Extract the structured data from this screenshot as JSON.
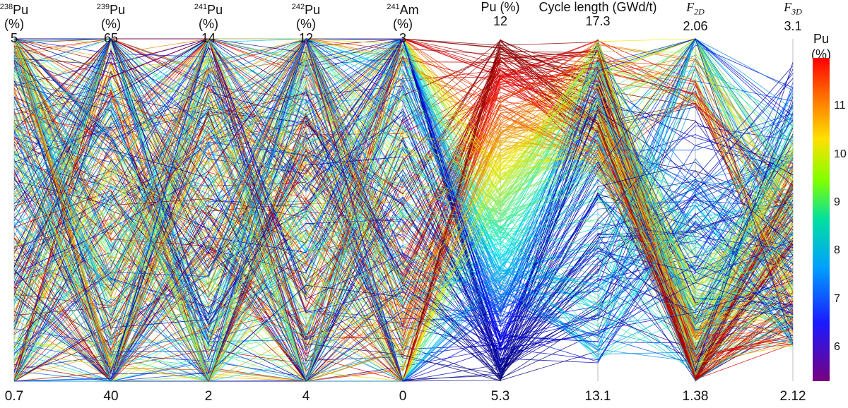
{
  "chart_data": {
    "type": "parallel_coordinates",
    "axes": [
      {
        "iso": "238",
        "name": "Pu",
        "unit": "(%)",
        "max": "5",
        "min": "0.7",
        "max_v": 5,
        "min_v": 0.7
      },
      {
        "iso": "239",
        "name": "Pu",
        "unit": "(%)",
        "max": "65",
        "min": "40",
        "max_v": 65,
        "min_v": 40
      },
      {
        "iso": "241",
        "name": "Pu",
        "unit": "(%)",
        "max": "14",
        "min": "2",
        "max_v": 14,
        "min_v": 2
      },
      {
        "iso": "242",
        "name": "Pu",
        "unit": "(%)",
        "max": "12",
        "min": "4",
        "max_v": 12,
        "min_v": 4
      },
      {
        "iso": "241",
        "name": "Am",
        "unit": "(%)",
        "max": "3",
        "min": "0",
        "max_v": 3,
        "min_v": 0
      },
      {
        "iso": "",
        "name": "Pu (%)",
        "unit": "",
        "max": "12",
        "min": "5.3",
        "max_v": 12,
        "min_v": 5.3
      },
      {
        "iso": "",
        "name": "Cycle length (GWd/t)",
        "unit": "",
        "max": "17.3",
        "min": "13.1",
        "max_v": 17.3,
        "min_v": 13.1
      },
      {
        "iso": "",
        "name": "F",
        "sub": "2D",
        "unit": "",
        "max": "2.06",
        "min": "1.38",
        "max_v": 2.06,
        "min_v": 1.38
      },
      {
        "iso": "",
        "name": "F",
        "sub": "3D",
        "unit": "",
        "max": "3.1",
        "min": "2.12",
        "max_v": 3.1,
        "min_v": 2.12
      }
    ],
    "colorbar": {
      "title": "Pu",
      "unit": "(%)",
      "ticks": [
        "11",
        "10",
        "9",
        "8",
        "7",
        "6"
      ],
      "range": [
        5.3,
        12
      ],
      "colormap": "jet"
    },
    "line_count_drawn": 420
  }
}
